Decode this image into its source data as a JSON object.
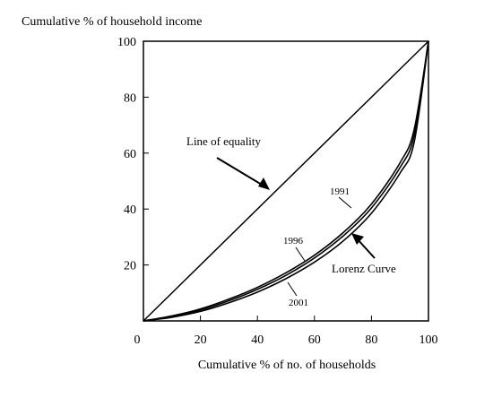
{
  "chart_data": {
    "type": "line",
    "title": "",
    "xlabel": "Cumulative % of no. of households",
    "ylabel": "Cumulative % of household income",
    "xlim": [
      0,
      100
    ],
    "ylim": [
      0,
      100
    ],
    "x_ticks": [
      "0",
      "20",
      "40",
      "60",
      "80",
      "100"
    ],
    "y_ticks": [
      "20",
      "40",
      "60",
      "80",
      "100"
    ],
    "grid": false,
    "legend": "none",
    "series": [
      {
        "name": "Line of equality",
        "x": [
          0,
          100
        ],
        "y": [
          0,
          100
        ]
      },
      {
        "name": "1991",
        "x": [
          0,
          10,
          20,
          30,
          40,
          50,
          60,
          70,
          80,
          90,
          95,
          100
        ],
        "y": [
          0,
          1.8,
          4.3,
          7.8,
          12.0,
          17.2,
          23.5,
          31.5,
          41.8,
          56.5,
          68.5,
          100
        ]
      },
      {
        "name": "1996",
        "x": [
          0,
          10,
          20,
          30,
          40,
          50,
          60,
          70,
          80,
          90,
          95,
          100
        ],
        "y": [
          0,
          1.6,
          3.9,
          7.2,
          11.3,
          16.3,
          22.5,
          30.3,
          40.4,
          54.8,
          66.5,
          100
        ]
      },
      {
        "name": "2001",
        "x": [
          0,
          10,
          20,
          30,
          40,
          50,
          60,
          70,
          80,
          90,
          95,
          100
        ],
        "y": [
          0,
          1.3,
          3.4,
          6.5,
          10.3,
          15.1,
          21.0,
          28.5,
          38.5,
          52.8,
          64.0,
          100
        ]
      }
    ],
    "annotations": {
      "equality": "Line of equality",
      "lorenz": "Lorenz Curve",
      "year_1991": "1991",
      "year_1996": "1996",
      "year_2001": "2001"
    }
  }
}
